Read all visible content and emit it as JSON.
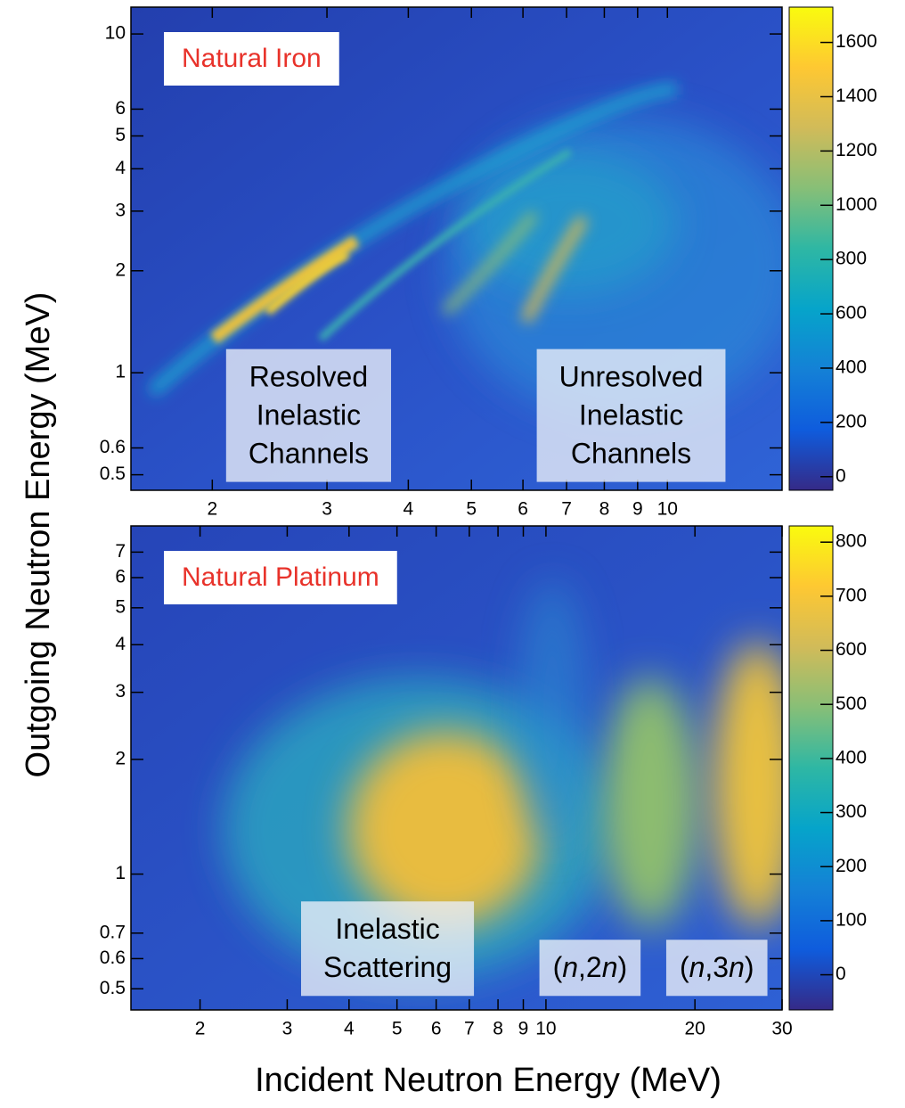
{
  "axis_labels": {
    "x": "Incident Neutron Energy (MeV)",
    "y": "Outgoing Neutron Energy (MeV)"
  },
  "chart_data": [
    {
      "type": "heatmap",
      "colormap": "parula",
      "log_x": true,
      "log_y": true,
      "xlim": [
        1.5,
        15
      ],
      "xticks": [
        2,
        3,
        4,
        5,
        6,
        7,
        8,
        9,
        10
      ],
      "ylim": [
        0.45,
        12
      ],
      "yticks": [
        0.5,
        0.6,
        1,
        2,
        3,
        4,
        5,
        6,
        10
      ],
      "zlim": [
        -50,
        1730
      ],
      "zticks": [
        0,
        200,
        400,
        600,
        800,
        1000,
        1200,
        1400,
        1600
      ],
      "label": {
        "text": "Natural Iron",
        "color": "#e8322a"
      },
      "annotations": [
        {
          "lines": [
            "Resolved",
            "Inelastic",
            "Channels"
          ],
          "x": 2.1,
          "y": 0.5
        },
        {
          "lines": [
            "Unresolved",
            "Inelastic",
            "Channels"
          ],
          "x": 6.3,
          "y": 0.5
        }
      ]
    },
    {
      "type": "heatmap",
      "colormap": "parula",
      "log_x": true,
      "log_y": true,
      "xlim": [
        1.45,
        30
      ],
      "xticks": [
        2,
        3,
        4,
        5,
        6,
        7,
        8,
        9,
        10,
        20,
        30
      ],
      "ylim": [
        0.44,
        8.2
      ],
      "yticks": [
        0.5,
        0.6,
        0.7,
        1,
        2,
        3,
        4,
        5,
        6,
        7
      ],
      "zlim": [
        -65,
        830
      ],
      "zticks": [
        0,
        100,
        200,
        300,
        400,
        500,
        600,
        700,
        800
      ],
      "label": {
        "text": "Natural Platinum",
        "color": "#e8322a"
      },
      "annotations": [
        {
          "lines": [
            "Inelastic",
            "Scattering"
          ],
          "x": 3.2,
          "y": 0.5
        },
        {
          "lines": [
            "(n,2n)"
          ],
          "x": 9.7,
          "y": 0.5
        },
        {
          "lines": [
            "(n,3n)"
          ],
          "x": 17.5,
          "y": 0.5
        }
      ]
    }
  ]
}
